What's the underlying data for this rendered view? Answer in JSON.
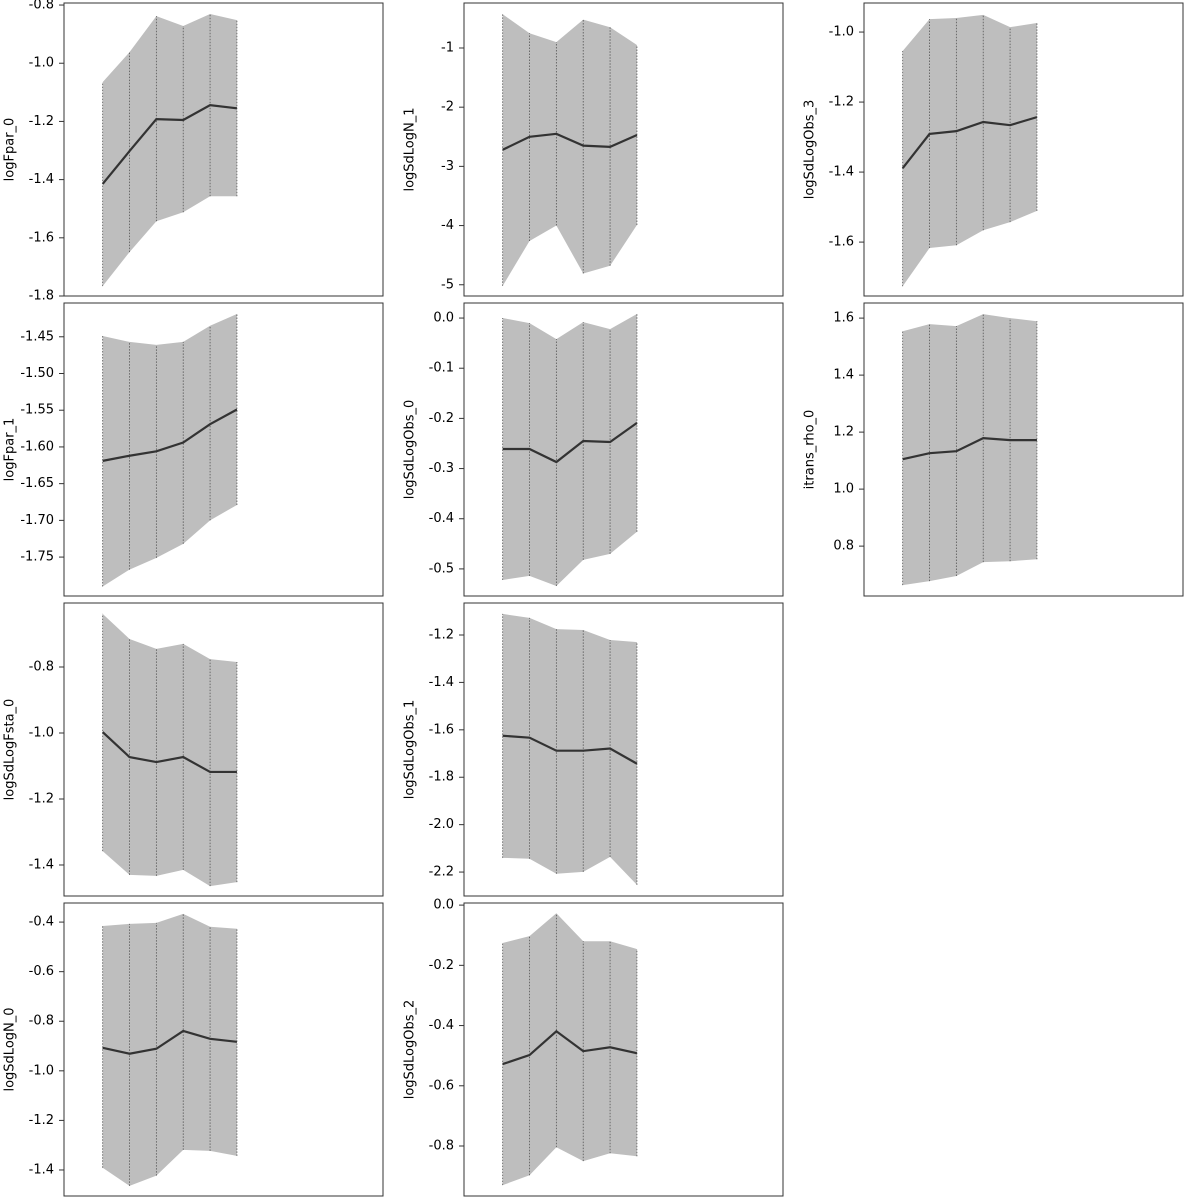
{
  "chart_data": [
    {
      "type": "band-line",
      "ylabel": "logFpar_0",
      "x": [
        1,
        2,
        3,
        4,
        5,
        6
      ],
      "xlim": [
        -0.44,
        11.44
      ],
      "values": [
        -1.415,
        -1.302,
        -1.192,
        -1.195,
        -1.144,
        -1.155
      ],
      "lower": [
        -1.766,
        -1.649,
        -1.543,
        -1.512,
        -1.457,
        -1.457
      ],
      "upper": [
        -1.065,
        -0.962,
        -0.838,
        -0.872,
        -0.831,
        -0.852
      ],
      "ylim": [
        -1.8,
        -0.793
      ],
      "yticks": [
        -0.8,
        {
          "value": -1,
          "label": "-1.0"
        },
        -1.2,
        -1.4,
        -1.6,
        -1.8
      ],
      "color": "#333333",
      "band_color": "#bebebe"
    },
    {
      "type": "band-line",
      "ylabel": "logFpar_1",
      "x": [
        1,
        2,
        3,
        4,
        5,
        6
      ],
      "xlim": [
        -0.44,
        11.44
      ],
      "values": [
        -1.619,
        -1.612,
        -1.606,
        -1.594,
        -1.569,
        -1.549
      ],
      "lower": [
        -1.79,
        -1.767,
        -1.751,
        -1.732,
        -1.7,
        -1.679
      ],
      "upper": [
        -1.449,
        -1.457,
        -1.461,
        -1.457,
        -1.435,
        -1.419
      ],
      "ylim": [
        -1.803,
        -1.404
      ],
      "yticks": [
        -1.45,
        {
          "value": -1.5,
          "label": "-1.50"
        },
        -1.55,
        {
          "value": -1.6,
          "label": "-1.60"
        },
        -1.65,
        {
          "value": -1.7,
          "label": "-1.70"
        },
        -1.75
      ],
      "color": "#333333",
      "band_color": "#bebebe"
    },
    {
      "type": "band-line",
      "ylabel": "logSdLogFsta_0",
      "x": [
        1,
        2,
        3,
        4,
        5,
        6
      ],
      "xlim": [
        -0.44,
        11.44
      ],
      "values": [
        -0.997,
        -1.073,
        -1.088,
        -1.073,
        -1.118,
        -1.118
      ],
      "lower": [
        -1.358,
        -1.43,
        -1.433,
        -1.415,
        -1.464,
        -1.452
      ],
      "upper": [
        -0.639,
        -0.715,
        -0.745,
        -0.73,
        -0.776,
        -0.785
      ],
      "ylim": [
        -1.494,
        -0.606
      ],
      "yticks": [
        -0.8,
        {
          "value": -1,
          "label": "-1.0"
        },
        -1.2,
        -1.4
      ],
      "color": "#333333",
      "band_color": "#bebebe"
    },
    {
      "type": "band-line",
      "ylabel": "logSdLogN_0",
      "x": [
        1,
        2,
        3,
        4,
        5,
        6
      ],
      "xlim": [
        -0.44,
        11.44
      ],
      "values": [
        -0.907,
        -0.931,
        -0.911,
        -0.839,
        -0.871,
        -0.883
      ],
      "lower": [
        -1.391,
        -1.464,
        -1.423,
        -1.319,
        -1.323,
        -1.343
      ],
      "upper": [
        -0.416,
        -0.407,
        -0.403,
        -0.367,
        -0.419,
        -0.427
      ],
      "ylim": [
        -1.505,
        -0.323
      ],
      "yticks": [
        -0.4,
        -0.6,
        -0.8,
        {
          "value": -1,
          "label": "-1.0"
        },
        -1.2,
        -1.4
      ],
      "color": "#333333",
      "band_color": "#bebebe"
    },
    {
      "type": "band-line",
      "ylabel": "logSdLogN_1",
      "x": [
        1,
        2,
        3,
        4,
        5,
        6
      ],
      "xlim": [
        -0.44,
        11.44
      ],
      "values": [
        -2.72,
        -2.5,
        -2.45,
        -2.65,
        -2.67,
        -2.47
      ],
      "lower": [
        -5.02,
        -4.26,
        -4.0,
        -4.81,
        -4.68,
        -3.99
      ],
      "upper": [
        -0.43,
        -0.75,
        -0.9,
        -0.52,
        -0.65,
        -0.95
      ],
      "ylim": [
        -5.19,
        -0.24
      ],
      "yticks": [
        -1,
        -2,
        -3,
        -4,
        -5
      ],
      "color": "#333333",
      "band_color": "#bebebe"
    },
    {
      "type": "band-line",
      "ylabel": "logSdLogObs_0",
      "x": [
        1,
        2,
        3,
        4,
        5,
        6
      ],
      "xlim": [
        -0.44,
        11.44
      ],
      "values": [
        -0.261,
        -0.261,
        -0.287,
        -0.245,
        -0.247,
        -0.209
      ],
      "lower": [
        -0.522,
        -0.514,
        -0.534,
        -0.482,
        -0.47,
        -0.426
      ],
      "upper": [
        0.0,
        -0.01,
        -0.042,
        -0.008,
        -0.022,
        0.008
      ],
      "ylim": [
        -0.554,
        0.03
      ],
      "yticks": [
        {
          "value": 0,
          "label": "0.0"
        },
        -0.1,
        -0.2,
        -0.3,
        -0.4,
        -0.5
      ],
      "color": "#333333",
      "band_color": "#bebebe"
    },
    {
      "type": "band-line",
      "ylabel": "logSdLogObs_1",
      "x": [
        1,
        2,
        3,
        4,
        5,
        6
      ],
      "xlim": [
        -0.44,
        11.44
      ],
      "values": [
        -1.625,
        -1.633,
        -1.688,
        -1.688,
        -1.679,
        -1.743
      ],
      "lower": [
        -2.14,
        -2.144,
        -2.207,
        -2.199,
        -2.136,
        -2.254
      ],
      "upper": [
        -1.111,
        -1.128,
        -1.175,
        -1.179,
        -1.221,
        -1.23
      ],
      "ylim": [
        -2.301,
        -1.065
      ],
      "yticks": [
        -1.2,
        -1.4,
        -1.6,
        -1.8,
        {
          "value": -2,
          "label": "-2.0"
        },
        -2.2
      ],
      "color": "#333333",
      "band_color": "#bebebe"
    },
    {
      "type": "band-line",
      "ylabel": "logSdLogObs_2",
      "x": [
        1,
        2,
        3,
        4,
        5,
        6
      ],
      "xlim": [
        -0.44,
        11.44
      ],
      "values": [
        -0.528,
        -0.498,
        -0.419,
        -0.485,
        -0.472,
        -0.492
      ],
      "lower": [
        -0.93,
        -0.897,
        -0.804,
        -0.85,
        -0.824,
        -0.834
      ],
      "upper": [
        -0.126,
        -0.103,
        -0.027,
        -0.12,
        -0.12,
        -0.146
      ],
      "ylim": [
        -0.966,
        0.007
      ],
      "yticks": [
        {
          "value": 0,
          "label": "0.0"
        },
        -0.2,
        -0.4,
        -0.6,
        -0.8
      ],
      "color": "#333333",
      "band_color": "#bebebe"
    },
    {
      "type": "band-line",
      "ylabel": "logSdLogObs_3",
      "x": [
        1,
        2,
        3,
        4,
        5,
        6
      ],
      "xlim": [
        -0.44,
        11.44
      ],
      "values": [
        -1.389,
        -1.291,
        -1.283,
        -1.257,
        -1.266,
        -1.243
      ],
      "lower": [
        -1.726,
        -1.617,
        -1.609,
        -1.566,
        -1.543,
        -1.511
      ],
      "upper": [
        -1.054,
        -0.963,
        -0.96,
        -0.951,
        -0.986,
        -0.974
      ],
      "ylim": [
        -1.754,
        -0.917
      ],
      "yticks": [
        {
          "value": -1,
          "label": "-1.0"
        },
        -1.2,
        -1.4,
        -1.6
      ],
      "color": "#333333",
      "band_color": "#bebebe"
    },
    {
      "type": "band-line",
      "ylabel": "itrans_rho_0",
      "x": [
        1,
        2,
        3,
        4,
        5,
        6
      ],
      "xlim": [
        -0.44,
        11.44
      ],
      "values": [
        1.105,
        1.126,
        1.133,
        1.179,
        1.172,
        1.172
      ],
      "lower": [
        0.663,
        0.677,
        0.695,
        0.744,
        0.747,
        0.754
      ],
      "upper": [
        1.554,
        1.579,
        1.572,
        1.614,
        1.6,
        1.589
      ],
      "ylim": [
        0.625,
        1.653
      ],
      "yticks": [
        1.6,
        1.4,
        1.2,
        {
          "value": 1,
          "label": "1.0"
        },
        0.8
      ],
      "color": "#333333",
      "band_color": "#bebebe"
    }
  ]
}
